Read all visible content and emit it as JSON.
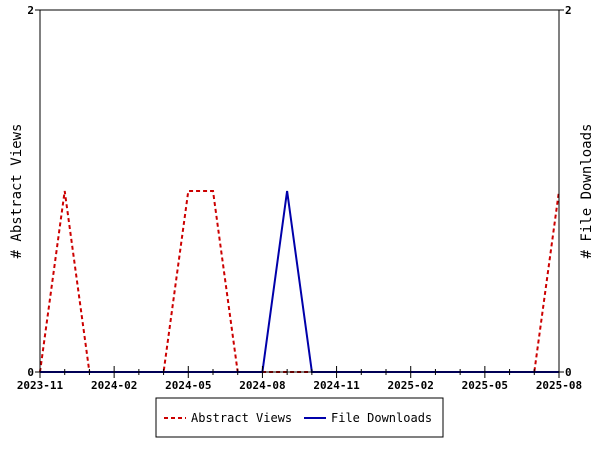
{
  "chart_data": {
    "type": "line",
    "x_type": "month",
    "x": [
      "2023-11",
      "2023-12",
      "2024-01",
      "2024-02",
      "2024-03",
      "2024-04",
      "2024-05",
      "2024-06",
      "2024-07",
      "2024-08",
      "2024-09",
      "2024-10",
      "2024-11",
      "2024-12",
      "2025-01",
      "2025-02",
      "2025-03",
      "2025-04",
      "2025-05",
      "2025-06",
      "2025-07",
      "2025-08"
    ],
    "x_tick_labels": [
      "2023-11",
      "2024-02",
      "2024-05",
      "2024-08",
      "2024-11",
      "2025-02",
      "2025-05",
      "2025-08"
    ],
    "series": [
      {
        "name": "Abstract Views",
        "axis": "left",
        "color": "#cc0000",
        "style": "dashed",
        "values": [
          0,
          1,
          0,
          0,
          0,
          0,
          1,
          1,
          0,
          0,
          0,
          0,
          0,
          0,
          0,
          0,
          0,
          0,
          0,
          0,
          0,
          1
        ]
      },
      {
        "name": "File Downloads",
        "axis": "right",
        "color": "#0000aa",
        "style": "solid",
        "values": [
          0,
          0,
          0,
          0,
          0,
          0,
          0,
          0,
          0,
          0,
          1,
          0,
          0,
          0,
          0,
          0,
          0,
          0,
          0,
          0,
          0,
          0
        ]
      }
    ],
    "ylabel": "# Abstract Views",
    "y2label": "# File Downloads",
    "ylim": [
      0,
      2
    ],
    "y2lim": [
      0,
      2
    ],
    "y_ticks": [
      "0",
      "2"
    ],
    "y2_ticks": [
      "0",
      "2"
    ],
    "legend_position": "bottom-center",
    "grid": false
  }
}
